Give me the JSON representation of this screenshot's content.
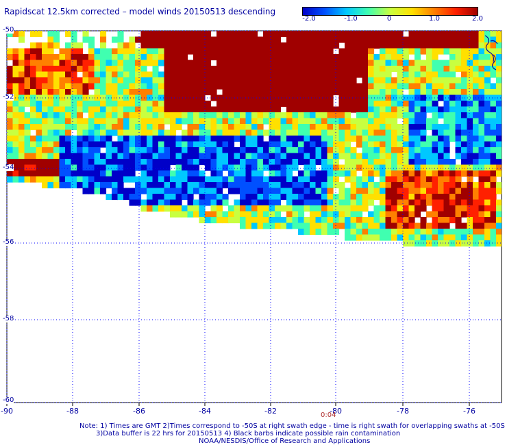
{
  "title": "Rapidscat 12.5km corrected – model winds 20150513 descending",
  "colorbar": {
    "labels": [
      "-2.0",
      "-1.0",
      "0",
      "1.0",
      "2.0"
    ],
    "values": [
      -2.0,
      -1.0,
      0,
      1.0,
      2.0
    ],
    "colors": [
      "#0000c8",
      "#0050ff",
      "#00c8ff",
      "#40ffb0",
      "#c8ff40",
      "#ffe000",
      "#ff8000",
      "#ff2000",
      "#a00000"
    ]
  },
  "map": {
    "lon_range": [
      -90,
      -75.3
    ],
    "lat_range": [
      -60,
      -50
    ],
    "lon_ticks": [
      "-90",
      "-88",
      "-86",
      "-84",
      "-82",
      "-80",
      "-78",
      "-76"
    ],
    "lat_ticks": [
      "-50",
      "-52",
      "-54",
      "-56",
      "-58",
      "-60"
    ],
    "grid_color": "#0000ff"
  },
  "time_label": "0:04",
  "notes": {
    "line1": "Note: 1) Times are GMT 2)Times correspond to -50S at right swath edge - time is right swath for overlapping swaths at -50S",
    "line2": "3)Data buffer is 22 hrs for 20150513 4) Black barbs indicate possible rain contamination",
    "line3": "NOAA/NESDIS/Office of Research and Applications"
  }
}
